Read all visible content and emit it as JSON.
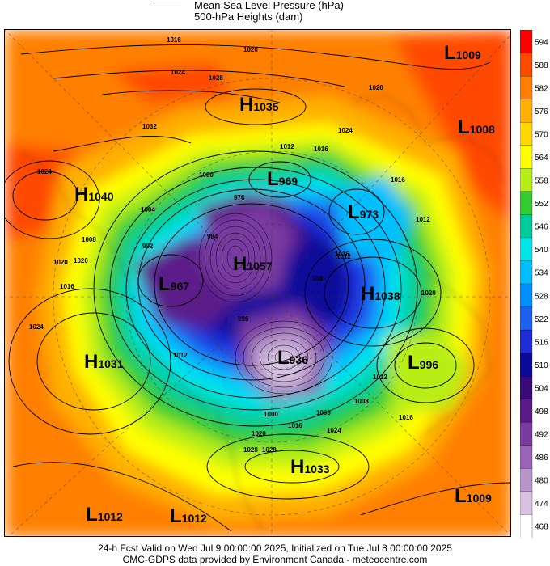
{
  "legend": {
    "mslp_label": "Mean Sea Level Pressure (hPa)",
    "height_label": "500-hPa Heights (dam)"
  },
  "colorbar": {
    "levels": [
      "594",
      "588",
      "582",
      "576",
      "570",
      "564",
      "558",
      "552",
      "546",
      "540",
      "534",
      "528",
      "522",
      "516",
      "510",
      "504",
      "498",
      "492",
      "486",
      "480",
      "474",
      "468"
    ],
    "colors": [
      "#ff0000",
      "#ff4a00",
      "#ff8000",
      "#ffb000",
      "#ffd800",
      "#ffff00",
      "#b8ee18",
      "#33cc33",
      "#00cc99",
      "#00e6e6",
      "#00bfff",
      "#0090ff",
      "#1e60f0",
      "#1f2cd8",
      "#0a0a9a",
      "#3a0a7a",
      "#5b1a8a",
      "#7a3aa0",
      "#9a64b8",
      "#b896cc",
      "#d8c4e2",
      "#ffffff"
    ]
  },
  "pressure_systems": [
    {
      "type": "L",
      "value": "1009"
    },
    {
      "type": "H",
      "value": "1035"
    },
    {
      "type": "L",
      "value": "1008"
    },
    {
      "type": "H",
      "value": "1040"
    },
    {
      "type": "L",
      "value": "969"
    },
    {
      "type": "L",
      "value": "973"
    },
    {
      "type": "H",
      "value": "1057"
    },
    {
      "type": "L",
      "value": "967"
    },
    {
      "type": "H",
      "value": "1038"
    },
    {
      "type": "H",
      "value": "1031"
    },
    {
      "type": "L",
      "value": "936"
    },
    {
      "type": "L",
      "value": "996"
    },
    {
      "type": "H",
      "value": "1033"
    },
    {
      "type": "L",
      "value": "1012"
    },
    {
      "type": "L",
      "value": "1012"
    },
    {
      "type": "L",
      "value": "1009"
    }
  ],
  "isobar_labels": [
    "1016",
    "1020",
    "1024",
    "1028",
    "1032",
    "1012",
    "1016",
    "1020",
    "1024",
    "1016",
    "1020",
    "1024",
    "1016",
    "1012",
    "1016",
    "1020",
    "1024",
    "1028",
    "1012",
    "1016",
    "1020",
    "1008",
    "1004",
    "1000",
    "992",
    "984",
    "976",
    "988",
    "996",
    "1000",
    "1008",
    "1012",
    "1016",
    "1020",
    "1024",
    "1028",
    "1008",
    "1012"
  ],
  "footer": {
    "line1": "24-h Fcst Valid on Wed Jul  9 00:00:00 2025, Initialized on Tue Jul  8 00:00:00 2025",
    "line2": "CMC-GDPS data provided by Environment Canada - meteocentre.com"
  }
}
